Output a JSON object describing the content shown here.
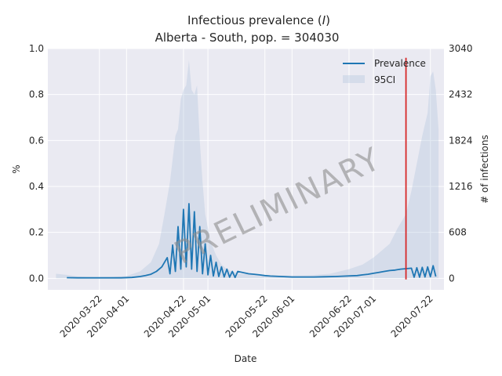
{
  "chart_data": {
    "type": "line",
    "title_prefix": "Infectious prevalence (",
    "title_symbol": "I",
    "title_suffix": ")",
    "subtitle": "Alberta - South, pop. = 304030",
    "xlabel": "Date",
    "ylabel": "%",
    "ylabel_right": "# of infections",
    "ylim": [
      -0.05,
      1.0
    ],
    "xlim": [
      "2020-03-03",
      "2020-07-27"
    ],
    "yticks": [
      "0.0",
      "0.2",
      "0.4",
      "0.6",
      "0.8",
      "1.0"
    ],
    "ytick_values": [
      0.0,
      0.2,
      0.4,
      0.6,
      0.8,
      1.0
    ],
    "yticks_right": [
      "0",
      "608",
      "1216",
      "1824",
      "2432",
      "3040"
    ],
    "xticks": [
      "2020-03-22",
      "2020-04-01",
      "2020-04-22",
      "2020-05-01",
      "2020-05-22",
      "2020-06-01",
      "2020-06-22",
      "2020-07-01",
      "2020-07-22"
    ],
    "vline_date": "2020-07-13",
    "watermark": "PRELIMINARY",
    "grid": true,
    "legend_position": "top-right",
    "series": [
      {
        "name": "Prevalence",
        "color": "#1f77b4",
        "x": [
          "2020-03-10",
          "2020-03-14",
          "2020-03-18",
          "2020-03-22",
          "2020-03-26",
          "2020-03-30",
          "2020-04-03",
          "2020-04-06",
          "2020-04-08",
          "2020-04-10",
          "2020-04-12",
          "2020-04-14",
          "2020-04-16",
          "2020-04-17",
          "2020-04-18",
          "2020-04-19",
          "2020-04-20",
          "2020-04-21",
          "2020-04-22",
          "2020-04-23",
          "2020-04-24",
          "2020-04-25",
          "2020-04-26",
          "2020-04-27",
          "2020-04-28",
          "2020-04-29",
          "2020-04-30",
          "2020-05-01",
          "2020-05-02",
          "2020-05-03",
          "2020-05-04",
          "2020-05-05",
          "2020-05-06",
          "2020-05-07",
          "2020-05-08",
          "2020-05-09",
          "2020-05-10",
          "2020-05-11",
          "2020-05-12",
          "2020-05-14",
          "2020-05-16",
          "2020-05-18",
          "2020-05-20",
          "2020-05-22",
          "2020-05-24",
          "2020-05-28",
          "2020-06-01",
          "2020-06-05",
          "2020-06-09",
          "2020-06-13",
          "2020-06-17",
          "2020-06-21",
          "2020-06-25",
          "2020-06-27",
          "2020-06-29",
          "2020-07-01",
          "2020-07-03",
          "2020-07-05",
          "2020-07-07",
          "2020-07-09",
          "2020-07-11",
          "2020-07-13",
          "2020-07-15",
          "2020-07-16",
          "2020-07-17",
          "2020-07-18",
          "2020-07-19",
          "2020-07-20",
          "2020-07-21",
          "2020-07-22",
          "2020-07-23",
          "2020-07-24"
        ],
        "values": [
          0.003,
          0.002,
          0.002,
          0.002,
          0.002,
          0.002,
          0.004,
          0.008,
          0.012,
          0.018,
          0.03,
          0.05,
          0.09,
          0.02,
          0.145,
          0.03,
          0.225,
          0.04,
          0.3,
          0.05,
          0.325,
          0.04,
          0.29,
          0.03,
          0.225,
          0.02,
          0.15,
          0.015,
          0.1,
          0.01,
          0.07,
          0.008,
          0.05,
          0.006,
          0.04,
          0.005,
          0.03,
          0.004,
          0.03,
          0.025,
          0.02,
          0.018,
          0.015,
          0.012,
          0.01,
          0.008,
          0.006,
          0.006,
          0.006,
          0.007,
          0.008,
          0.01,
          0.012,
          0.015,
          0.018,
          0.022,
          0.026,
          0.03,
          0.034,
          0.036,
          0.04,
          0.042,
          0.044,
          0.005,
          0.046,
          0.005,
          0.048,
          0.006,
          0.05,
          0.007,
          0.055,
          0.008
        ]
      },
      {
        "name": "95CI",
        "color": "#b0c4de",
        "x": [
          "2020-03-06",
          "2020-03-10",
          "2020-03-14",
          "2020-03-20",
          "2020-03-26",
          "2020-04-01",
          "2020-04-06",
          "2020-04-10",
          "2020-04-13",
          "2020-04-15",
          "2020-04-17",
          "2020-04-19",
          "2020-04-20",
          "2020-04-21",
          "2020-04-22",
          "2020-04-23",
          "2020-04-24",
          "2020-04-25",
          "2020-04-26",
          "2020-04-27",
          "2020-04-28",
          "2020-04-29",
          "2020-04-30",
          "2020-05-02",
          "2020-05-04",
          "2020-05-06",
          "2020-05-08",
          "2020-05-10",
          "2020-05-13",
          "2020-05-16",
          "2020-05-20",
          "2020-05-25",
          "2020-06-01",
          "2020-06-08",
          "2020-06-15",
          "2020-06-22",
          "2020-06-27",
          "2020-07-01",
          "2020-07-04",
          "2020-07-07",
          "2020-07-10",
          "2020-07-13",
          "2020-07-15",
          "2020-07-17",
          "2020-07-19",
          "2020-07-21",
          "2020-07-22",
          "2020-07-23",
          "2020-07-24",
          "2020-07-25"
        ],
        "upper": [
          0.02,
          0.015,
          0.008,
          0.005,
          0.006,
          0.01,
          0.03,
          0.07,
          0.15,
          0.28,
          0.42,
          0.62,
          0.65,
          0.78,
          0.82,
          0.84,
          0.95,
          0.82,
          0.8,
          0.84,
          0.6,
          0.42,
          0.28,
          0.16,
          0.1,
          0.06,
          0.04,
          0.03,
          0.02,
          0.018,
          0.015,
          0.012,
          0.012,
          0.014,
          0.02,
          0.04,
          0.06,
          0.09,
          0.12,
          0.15,
          0.22,
          0.28,
          0.38,
          0.5,
          0.62,
          0.72,
          0.88,
          0.9,
          0.82,
          0.65
        ],
        "lower": [
          0.0,
          0.0,
          0.0,
          0.0,
          0.0,
          0.0,
          0.0,
          0.0,
          0.0,
          0.0,
          0.0,
          0.0,
          0.0,
          0.0,
          0.0,
          0.0,
          0.0,
          0.0,
          0.0,
          0.0,
          0.0,
          0.0,
          0.0,
          0.0,
          0.0,
          0.0,
          0.0,
          0.0,
          0.0,
          0.0,
          0.0,
          0.0,
          0.0,
          0.0,
          0.0,
          0.0,
          0.0,
          0.0,
          0.0,
          0.0,
          0.0,
          0.0,
          0.0,
          0.0,
          0.0,
          0.0,
          0.0,
          0.0,
          0.0,
          0.0
        ]
      }
    ]
  },
  "colors": {
    "plot_bg": "#eaeaf2",
    "grid": "#ffffff",
    "vline": "#d62728"
  }
}
